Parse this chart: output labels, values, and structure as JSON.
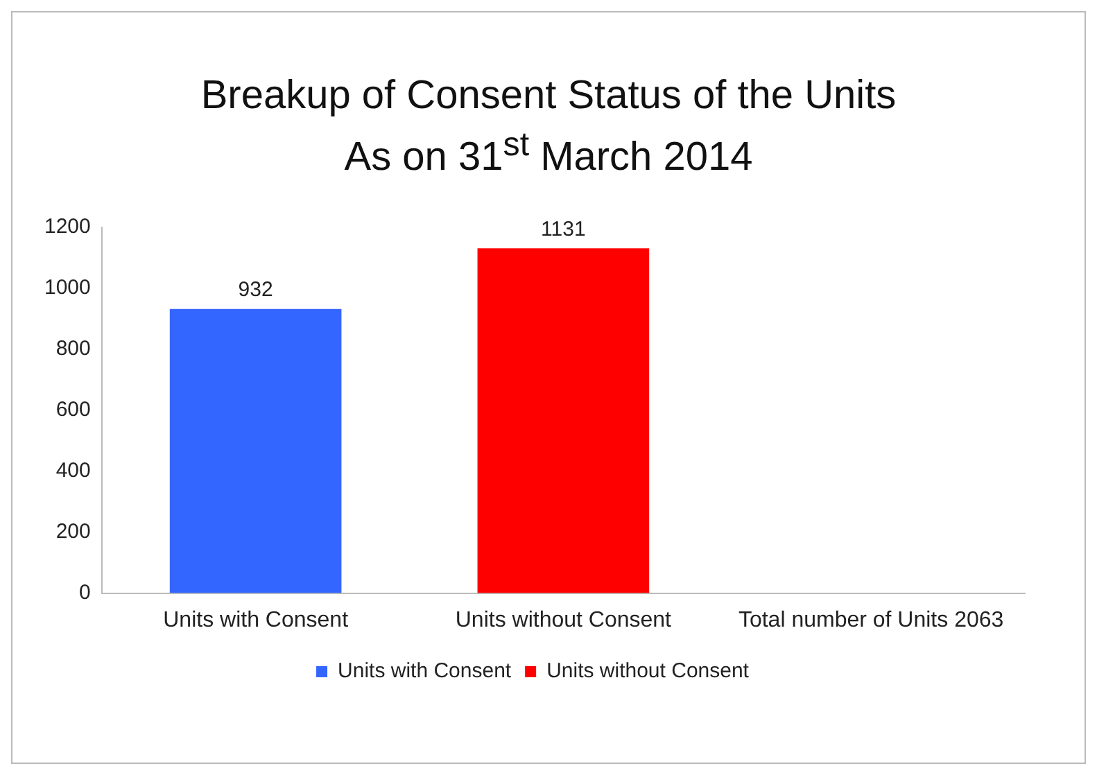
{
  "chart_data": {
    "type": "bar",
    "title": "Breakup of Consent Status of the Units",
    "subtitle": "As on 31$^{st}$ March 2014",
    "categories": [
      "Units with Consent",
      "Units without Consent",
      "Total number of Units 2063"
    ],
    "series": [
      {
        "name": "Units with Consent",
        "color": "#3366ff",
        "values": [
          932,
          null,
          null
        ]
      },
      {
        "name": "Units without Consent",
        "color": "#ff0000",
        "values": [
          null,
          1131,
          null
        ]
      }
    ],
    "stacked": true,
    "ylim": [
      0,
      1200
    ],
    "yticks": [
      0,
      200,
      400,
      600,
      800,
      1000,
      1200
    ],
    "grid": false,
    "legend": "bottom",
    "data_labels": true
  }
}
